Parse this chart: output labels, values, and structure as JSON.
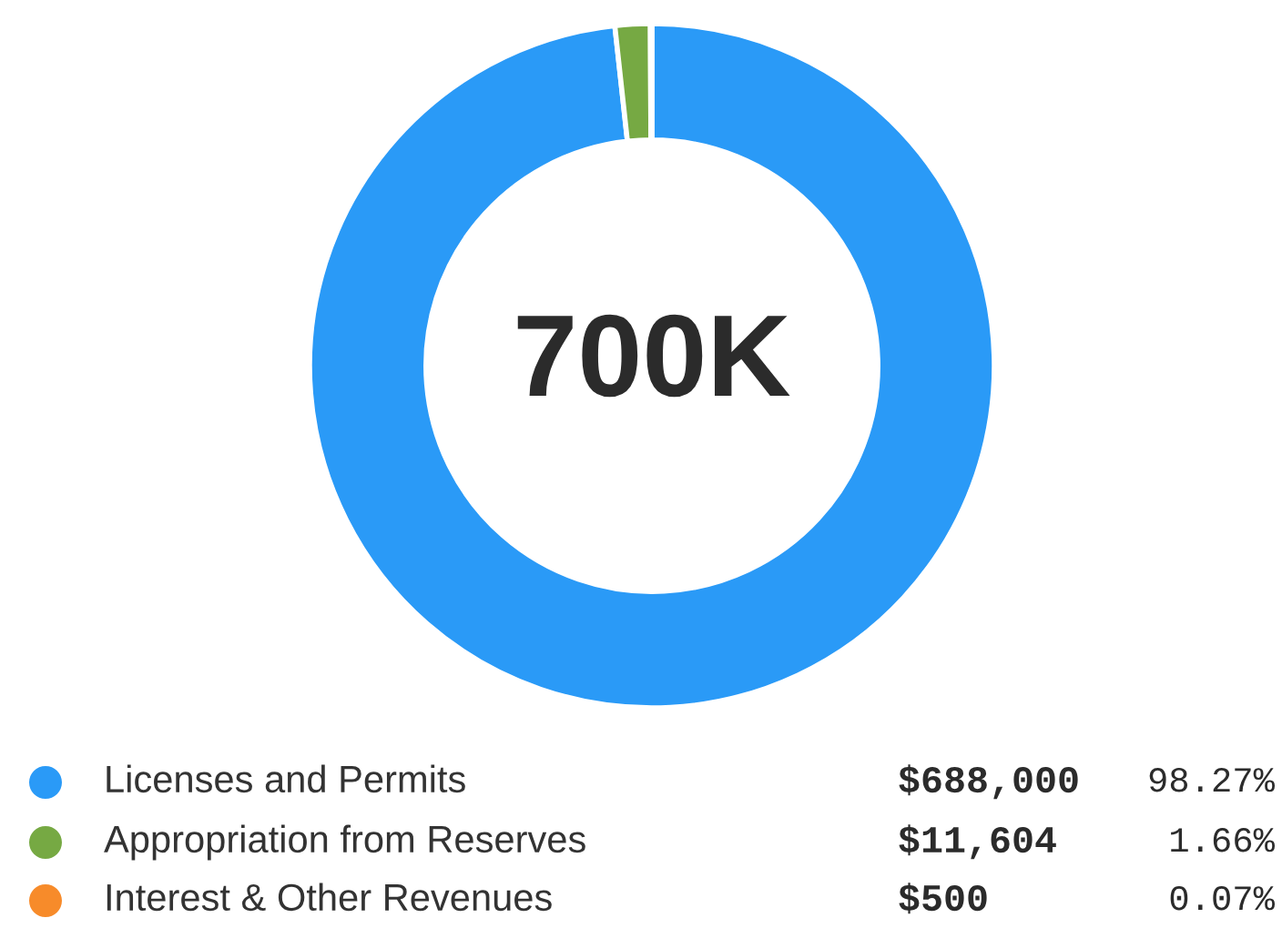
{
  "chart_data": {
    "type": "donut",
    "categories": [
      "Licenses and Permits",
      "Appropriation from Reserves",
      "Interest & Other Revenues"
    ],
    "values": [
      688000,
      11604,
      500
    ],
    "colors": [
      "#2a9af7",
      "#76a943",
      "#f78b2a"
    ],
    "value_labels": [
      "$688,000",
      "$11,604",
      "$500"
    ],
    "annotations": [
      "700K",
      "98.27%",
      "1.66%",
      "0.07%"
    ],
    "legend": "bottom"
  }
}
